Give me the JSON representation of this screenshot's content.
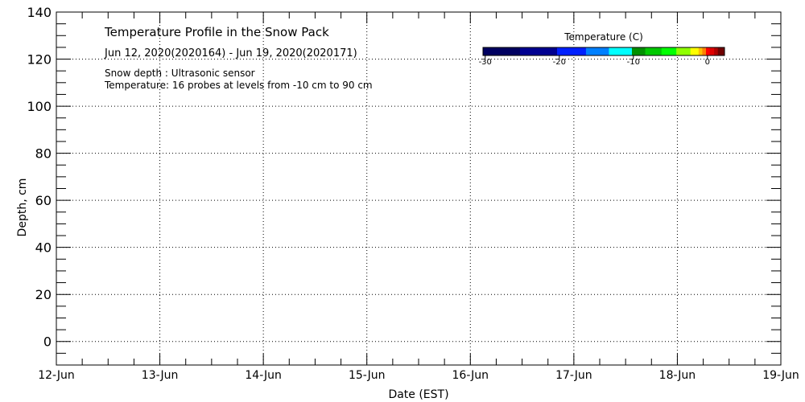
{
  "chart_data": {
    "type": "heatmap",
    "title": "Temperature Profile in the Snow Pack",
    "subtitle": "Jun 12, 2020(2020164) - Jun 19, 2020(2020171)",
    "notes": [
      "Snow depth : Ultrasonic sensor",
      "Temperature: 16 probes at levels from -10 cm to 90 cm"
    ],
    "xlabel": "Date (EST)",
    "ylabel": "Depth, cm",
    "x_ticks": [
      "12-Jun",
      "13-Jun",
      "14-Jun",
      "15-Jun",
      "16-Jun",
      "17-Jun",
      "18-Jun",
      "19-Jun"
    ],
    "y_ticks": [
      0,
      20,
      40,
      60,
      80,
      100,
      120,
      140
    ],
    "ylim": [
      -10,
      140
    ],
    "grid": true,
    "series": [],
    "colorbar": {
      "title": "Temperature (C)",
      "ticks": [
        -30,
        -20,
        -10,
        0
      ],
      "range": [
        -30.3,
        2.3
      ],
      "bounds": [
        -30.3,
        -25.3,
        -20.3,
        -16.4,
        -13.3,
        -10.2,
        -8.4,
        -6.2,
        -4.2,
        -2.3,
        -1.2,
        -0.7,
        -0.2,
        0.3,
        0.9,
        1.4,
        2.3
      ],
      "colors": [
        "#000060",
        "#000090",
        "#0020ff",
        "#0080ff",
        "#00ffff",
        "#009000",
        "#00c800",
        "#00ff00",
        "#90ff00",
        "#ffff00",
        "#ffc000",
        "#ff8000",
        "#ff0000",
        "#e00000",
        "#b00000",
        "#700000"
      ]
    }
  }
}
